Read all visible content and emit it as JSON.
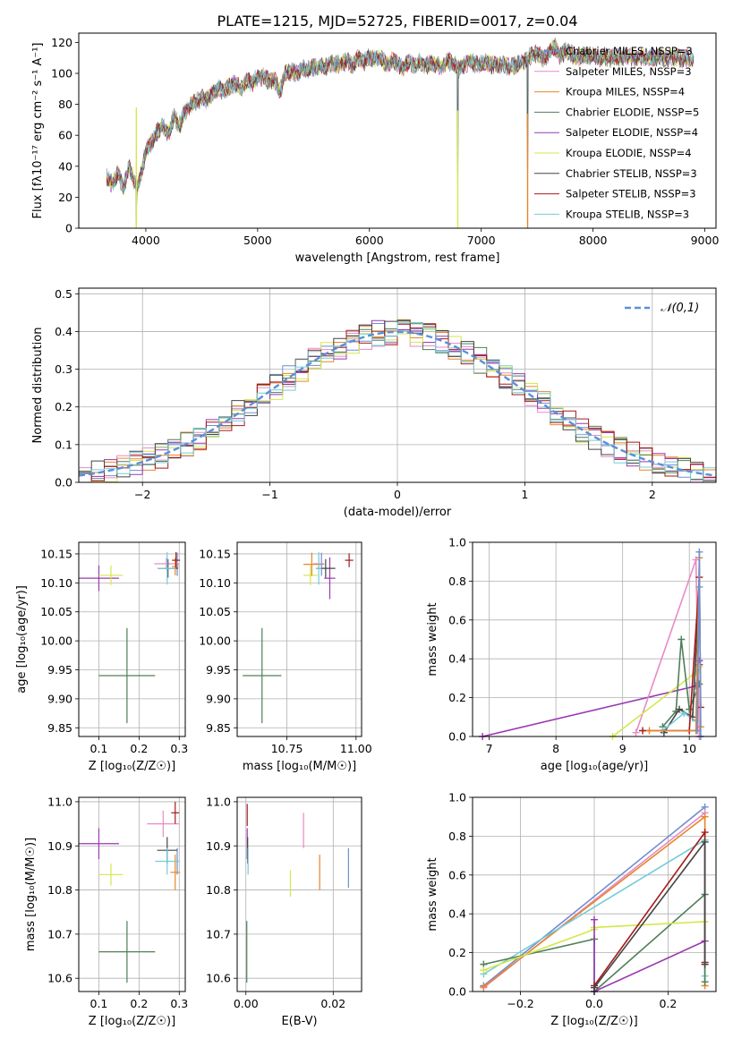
{
  "figure_title": "PLATE=1215, MJD=52725, FIBERID=0017, z=0.04",
  "colors": {
    "Chabrier MILES": "#6f8fcf",
    "Salpeter MILES": "#e88ac6",
    "Kroupa MILES": "#e6862a",
    "Chabrier ELODIE": "#4f7f5a",
    "Salpeter ELODIE": "#9a38b0",
    "Kroupa ELODIE": "#d4e84a",
    "Chabrier STELIB": "#444444",
    "Salpeter STELIB": "#a81a1a",
    "Kroupa STELIB": "#74ccd6",
    "normal": "#5b8fd8"
  },
  "chart_data": [
    {
      "id": "spectrum",
      "type": "line",
      "xlabel": "wavelength [Angstrom, rest frame]",
      "ylabel": "Flux [fλ10⁻¹⁷ erg cm⁻² s⁻¹ A⁻¹]",
      "xlim": [
        3400,
        9100
      ],
      "ylim": [
        0,
        126
      ],
      "xticks": [
        4000,
        5000,
        6000,
        7000,
        8000,
        9000
      ],
      "yticks": [
        0,
        20,
        40,
        60,
        80,
        100,
        120
      ],
      "legend": "top-right",
      "series": [
        {
          "name": "Chabrier MILES, NSSP=3"
        },
        {
          "name": "Salpeter MILES, NSSP=3"
        },
        {
          "name": "Kroupa MILES, NSSP=4"
        },
        {
          "name": "Chabrier ELODIE, NSSP=5"
        },
        {
          "name": "Salpeter ELODIE, NSSP=4"
        },
        {
          "name": "Kroupa ELODIE, NSSP=4"
        },
        {
          "name": "Chabrier STELIB, NSSP=3"
        },
        {
          "name": "Salpeter STELIB, NSSP=3"
        },
        {
          "name": "Kroupa STELIB, NSSP=3"
        }
      ],
      "envelope": {
        "x": [
          3650,
          3700,
          3750,
          3800,
          3850,
          3900,
          3930,
          3970,
          4000,
          4050,
          4100,
          4150,
          4200,
          4250,
          4300,
          4350,
          4400,
          4450,
          4500,
          4550,
          4600,
          4650,
          4700,
          4750,
          4800,
          4850,
          4900,
          4950,
          5000,
          5050,
          5100,
          5150,
          5200,
          5250,
          5300,
          5350,
          5400,
          5450,
          5500,
          5550,
          5600,
          5650,
          5700,
          5750,
          5800,
          5850,
          5900,
          5950,
          6000,
          6050,
          6100,
          6150,
          6200,
          6250,
          6300,
          6350,
          6400,
          6450,
          6500,
          6550,
          6600,
          6650,
          6700,
          6750,
          6800,
          6850,
          6900,
          6950,
          7000,
          7050,
          7100,
          7150,
          7200,
          7250,
          7300,
          7350,
          7400,
          7450,
          7500,
          7550,
          7600,
          7650,
          7700,
          7750,
          7800,
          7850,
          7900,
          7950,
          8000,
          8050,
          8100,
          8150,
          8200,
          8250,
          8300,
          8350,
          8400,
          8450,
          8500,
          8550,
          8600,
          8650,
          8700,
          8750,
          8800,
          8850,
          8900
        ],
        "y": [
          33,
          28,
          36,
          26,
          40,
          30,
          26,
          40,
          50,
          55,
          62,
          66,
          60,
          72,
          66,
          75,
          79,
          82,
          84,
          83,
          88,
          90,
          89,
          92,
          93,
          90,
          95,
          94,
          97,
          98,
          95,
          96,
          88,
          100,
          101,
          100,
          103,
          102,
          104,
          105,
          104,
          106,
          106,
          107,
          108,
          105,
          110,
          107,
          111,
          109,
          110,
          106,
          108,
          107,
          103,
          108,
          105,
          107,
          105,
          106,
          106,
          104,
          108,
          107,
          103,
          106,
          108,
          106,
          106,
          107,
          105,
          106,
          106,
          104,
          105,
          106,
          109,
          112,
          113,
          110,
          112,
          118,
          111,
          114,
          113,
          110,
          112,
          112,
          111,
          110,
          111,
          110,
          111,
          110,
          112,
          110,
          110,
          111,
          110,
          110,
          111,
          109,
          111,
          110,
          109,
          110,
          109
        ]
      },
      "dropouts": [
        3915,
        6790,
        7415
      ]
    },
    {
      "id": "residuals",
      "type": "histogram",
      "xlabel": "(data-model)/error",
      "ylabel": "Normed distribution",
      "xlim": [
        -2.5,
        2.5
      ],
      "ylim": [
        0,
        0.515
      ],
      "xticks": [
        -2,
        -1,
        0,
        1,
        2
      ],
      "yticks": [
        0.0,
        0.1,
        0.2,
        0.3,
        0.4,
        0.5
      ],
      "legend": "top-right",
      "legend_label": "𝒩(0,1)"
    },
    {
      "id": "age_vs_Z",
      "type": "errorbar",
      "xlabel": "Z [log₁₀(Z/Z☉)]",
      "ylabel": "age  [log₁₀(age/yr)]",
      "xlim": [
        0.05,
        0.315
      ],
      "ylim": [
        9.835,
        10.17
      ],
      "xticks": [
        0.1,
        0.2,
        0.3
      ],
      "yticks": [
        9.85,
        9.9,
        9.95,
        10.0,
        10.05,
        10.1,
        10.15
      ],
      "points": [
        {
          "model": "Chabrier ELODIE",
          "x": 0.17,
          "y": 9.94,
          "dx": 0.07,
          "dy": 0.082
        },
        {
          "model": "Salpeter ELODIE",
          "x": 0.1,
          "y": 10.108,
          "dx": 0.05,
          "dy": 0.022
        },
        {
          "model": "Kroupa ELODIE",
          "x": 0.13,
          "y": 10.113,
          "dx": 0.03,
          "dy": 0.017
        },
        {
          "model": "Chabrier MILES",
          "x": 0.295,
          "y": 10.132,
          "dx": 0.004,
          "dy": 0.02
        },
        {
          "model": "Salpeter MILES",
          "x": 0.268,
          "y": 10.133,
          "dx": 0.03,
          "dy": 0.01
        },
        {
          "model": "Kroupa MILES",
          "x": 0.29,
          "y": 10.128,
          "dx": 0.008,
          "dy": 0.015
        },
        {
          "model": "Chabrier STELIB",
          "x": 0.272,
          "y": 10.125,
          "dx": 0.025,
          "dy": 0.016
        },
        {
          "model": "Salpeter STELIB",
          "x": 0.292,
          "y": 10.139,
          "dx": 0.01,
          "dy": 0.014
        },
        {
          "model": "Kroupa STELIB",
          "x": 0.27,
          "y": 10.125,
          "dx": 0.022,
          "dy": 0.028
        }
      ]
    },
    {
      "id": "age_vs_mass",
      "type": "errorbar",
      "xlabel": "mass [log₁₀(M/M☉)]",
      "ylabel": "",
      "xlim": [
        10.57,
        11.02
      ],
      "ylim": [
        9.835,
        10.17
      ],
      "xticks": [
        10.75,
        11.0
      ],
      "yticks": [
        9.85,
        9.9,
        9.95,
        10.0,
        10.05,
        10.1,
        10.15
      ],
      "points": [
        {
          "model": "Chabrier ELODIE",
          "x": 10.66,
          "y": 9.94,
          "dx": 0.07,
          "dy": 0.082
        },
        {
          "model": "Salpeter ELODIE",
          "x": 10.905,
          "y": 10.108,
          "dx": 0.02,
          "dy": 0.036
        },
        {
          "model": "Kroupa ELODIE",
          "x": 10.835,
          "y": 10.113,
          "dx": 0.025,
          "dy": 0.017
        },
        {
          "model": "Chabrier MILES",
          "x": 10.875,
          "y": 10.132,
          "dx": 0.01,
          "dy": 0.02
        },
        {
          "model": "Salpeter MILES",
          "x": 10.865,
          "y": 10.133,
          "dx": 0.02,
          "dy": 0.01
        },
        {
          "model": "Kroupa MILES",
          "x": 10.84,
          "y": 10.132,
          "dx": 0.03,
          "dy": 0.02
        },
        {
          "model": "Chabrier STELIB",
          "x": 10.89,
          "y": 10.125,
          "dx": 0.035,
          "dy": 0.016
        },
        {
          "model": "Salpeter STELIB",
          "x": 10.975,
          "y": 10.139,
          "dx": 0.015,
          "dy": 0.012
        },
        {
          "model": "Kroupa STELIB",
          "x": 10.865,
          "y": 10.125,
          "dx": 0.01,
          "dy": 0.028
        }
      ]
    },
    {
      "id": "mass_weight_vs_age",
      "type": "line",
      "xlabel": "age  [log₁₀(age/yr)]",
      "ylabel": "mass weight",
      "xlim": [
        6.75,
        10.4
      ],
      "ylim": [
        0.0,
        1.0
      ],
      "xticks": [
        7,
        8,
        9,
        10
      ],
      "yticks": [
        0.0,
        0.2,
        0.4,
        0.6,
        0.8,
        1.0
      ],
      "series": [
        {
          "model": "Salpeter ELODIE",
          "x": [
            6.9,
            10.1,
            10.15,
            10.15
          ],
          "y": [
            0.0,
            0.26,
            0.37,
            0.39
          ]
        },
        {
          "model": "Salpeter MILES",
          "x": [
            9.2,
            10.1,
            10.15
          ],
          "y": [
            0.02,
            0.91,
            0.0
          ]
        },
        {
          "model": "Kroupa ELODIE",
          "x": [
            8.85,
            10.1,
            10.15
          ],
          "y": [
            0.0,
            0.33,
            0.36
          ]
        },
        {
          "model": "Chabrier ELODIE",
          "x": [
            9.6,
            9.8,
            9.88,
            10.0,
            10.15
          ],
          "y": [
            0.05,
            0.13,
            0.5,
            0.14,
            0.27
          ]
        },
        {
          "model": "Chabrier STELIB",
          "x": [
            9.62,
            9.85,
            10.05,
            10.15
          ],
          "y": [
            0.02,
            0.14,
            0.1,
            0.77
          ]
        },
        {
          "model": "Kroupa STELIB",
          "x": [
            9.6,
            9.92,
            10.1,
            10.15
          ],
          "y": [
            0.03,
            0.12,
            0.08,
            0.77
          ]
        },
        {
          "model": "Salpeter STELIB",
          "x": [
            9.3,
            10.0,
            10.15,
            10.17
          ],
          "y": [
            0.03,
            0.03,
            0.82,
            0.15
          ]
        },
        {
          "model": "Kroupa MILES",
          "x": [
            9.4,
            10.1,
            10.15,
            10.17
          ],
          "y": [
            0.03,
            0.03,
            0.92,
            0.05
          ]
        },
        {
          "model": "Chabrier MILES",
          "x": [
            10.12,
            10.15,
            10.17
          ],
          "y": [
            0.03,
            0.95,
            0.0
          ]
        }
      ]
    },
    {
      "id": "mass_vs_Z",
      "type": "errorbar",
      "xlabel": "Z [log₁₀(Z/Z☉)]",
      "ylabel": "mass [log₁₀(M/M☉)]",
      "xlim": [
        0.05,
        0.315
      ],
      "ylim": [
        10.57,
        11.01
      ],
      "xticks": [
        0.1,
        0.2,
        0.3
      ],
      "yticks": [
        10.6,
        10.7,
        10.8,
        10.9,
        11.0
      ],
      "points": [
        {
          "model": "Chabrier ELODIE",
          "x": 0.17,
          "y": 10.66,
          "dx": 0.07,
          "dy": 0.07
        },
        {
          "model": "Salpeter ELODIE",
          "x": 0.1,
          "y": 10.905,
          "dx": 0.05,
          "dy": 0.035
        },
        {
          "model": "Kroupa ELODIE",
          "x": 0.13,
          "y": 10.835,
          "dx": 0.03,
          "dy": 0.025
        },
        {
          "model": "Chabrier MILES",
          "x": 0.295,
          "y": 10.865,
          "dx": 0.004,
          "dy": 0.03
        },
        {
          "model": "Salpeter MILES",
          "x": 0.26,
          "y": 10.95,
          "dx": 0.04,
          "dy": 0.03
        },
        {
          "model": "Kroupa MILES",
          "x": 0.29,
          "y": 10.84,
          "dx": 0.012,
          "dy": 0.04
        },
        {
          "model": "Chabrier STELIB",
          "x": 0.27,
          "y": 10.89,
          "dx": 0.025,
          "dy": 0.03
        },
        {
          "model": "Salpeter STELIB",
          "x": 0.29,
          "y": 10.975,
          "dx": 0.01,
          "dy": 0.025
        },
        {
          "model": "Kroupa STELIB",
          "x": 0.27,
          "y": 10.865,
          "dx": 0.03,
          "dy": 0.03
        }
      ]
    },
    {
      "id": "mass_vs_ebv",
      "type": "errorbar",
      "xlabel": "E(B-V)",
      "ylabel": "",
      "xlim": [
        -0.002,
        0.0265
      ],
      "ylim": [
        10.57,
        11.01
      ],
      "xticks": [
        0.0,
        0.02
      ],
      "yticks": [
        10.6,
        10.7,
        10.8,
        10.9,
        11.0
      ],
      "points": [
        {
          "model": "Chabrier ELODIE",
          "x": 0.0002,
          "y": 10.66,
          "dx": 0,
          "dy": 0.07
        },
        {
          "model": "Salpeter ELODIE",
          "x": 0.0003,
          "y": 10.905,
          "dx": 0,
          "dy": 0.035
        },
        {
          "model": "Kroupa ELODIE",
          "x": 0.0102,
          "y": 10.815,
          "dx": 0,
          "dy": 0.03
        },
        {
          "model": "Chabrier MILES",
          "x": 0.0235,
          "y": 10.85,
          "dx": 0,
          "dy": 0.045
        },
        {
          "model": "Salpeter MILES",
          "x": 0.0132,
          "y": 10.935,
          "dx": 0,
          "dy": 0.04
        },
        {
          "model": "Kroupa MILES",
          "x": 0.0169,
          "y": 10.84,
          "dx": 0,
          "dy": 0.04
        },
        {
          "model": "Chabrier STELIB",
          "x": 0.0004,
          "y": 10.89,
          "dx": 0,
          "dy": 0.03
        },
        {
          "model": "Salpeter STELIB",
          "x": 0.0003,
          "y": 10.97,
          "dx": 0,
          "dy": 0.025
        },
        {
          "model": "Kroupa STELIB",
          "x": 0.0005,
          "y": 10.865,
          "dx": 0,
          "dy": 0.03
        }
      ]
    },
    {
      "id": "mass_weight_vs_Z",
      "type": "line",
      "xlabel": "Z [log₁₀(Z/Z☉)]",
      "ylabel": "mass weight",
      "xlim": [
        -0.33,
        0.33
      ],
      "ylim": [
        0.0,
        1.0
      ],
      "xticks": [
        -0.2,
        0.0,
        0.2
      ],
      "yticks": [
        0.0,
        0.2,
        0.4,
        0.6,
        0.8,
        1.0
      ],
      "series": [
        {
          "model": "Chabrier MILES",
          "x": [
            -0.3,
            0.3
          ],
          "y": [
            0.03,
            0.95
          ]
        },
        {
          "model": "Salpeter MILES",
          "x": [
            -0.3,
            0.3
          ],
          "y": [
            0.02,
            0.92
          ]
        },
        {
          "model": "Kroupa MILES",
          "x": [
            -0.3,
            0.3,
            0.3
          ],
          "y": [
            0.025,
            0.9,
            0.03
          ]
        },
        {
          "model": "Kroupa STELIB",
          "x": [
            -0.3,
            0.3,
            0.3
          ],
          "y": [
            0.09,
            0.78,
            0.08
          ]
        },
        {
          "model": "Chabrier ELODIE",
          "x": [
            -0.3,
            0.0,
            0.0,
            0.3,
            0.3
          ],
          "y": [
            0.14,
            0.27,
            0.0,
            0.5,
            0.05
          ]
        },
        {
          "model": "Kroupa ELODIE",
          "x": [
            -0.3,
            0.0,
            0.0,
            0.3
          ],
          "y": [
            0.11,
            0.32,
            0.33,
            0.36
          ]
        },
        {
          "model": "Salpeter ELODIE",
          "x": [
            0.0,
            0.0,
            0.3
          ],
          "y": [
            0.37,
            0.0,
            0.26
          ]
        },
        {
          "model": "Salpeter STELIB",
          "x": [
            0.0,
            0.3,
            0.3
          ],
          "y": [
            0.03,
            0.82,
            0.15
          ]
        },
        {
          "model": "Chabrier STELIB",
          "x": [
            0.0,
            0.3,
            0.3
          ],
          "y": [
            0.02,
            0.77,
            0.14
          ]
        }
      ]
    }
  ]
}
